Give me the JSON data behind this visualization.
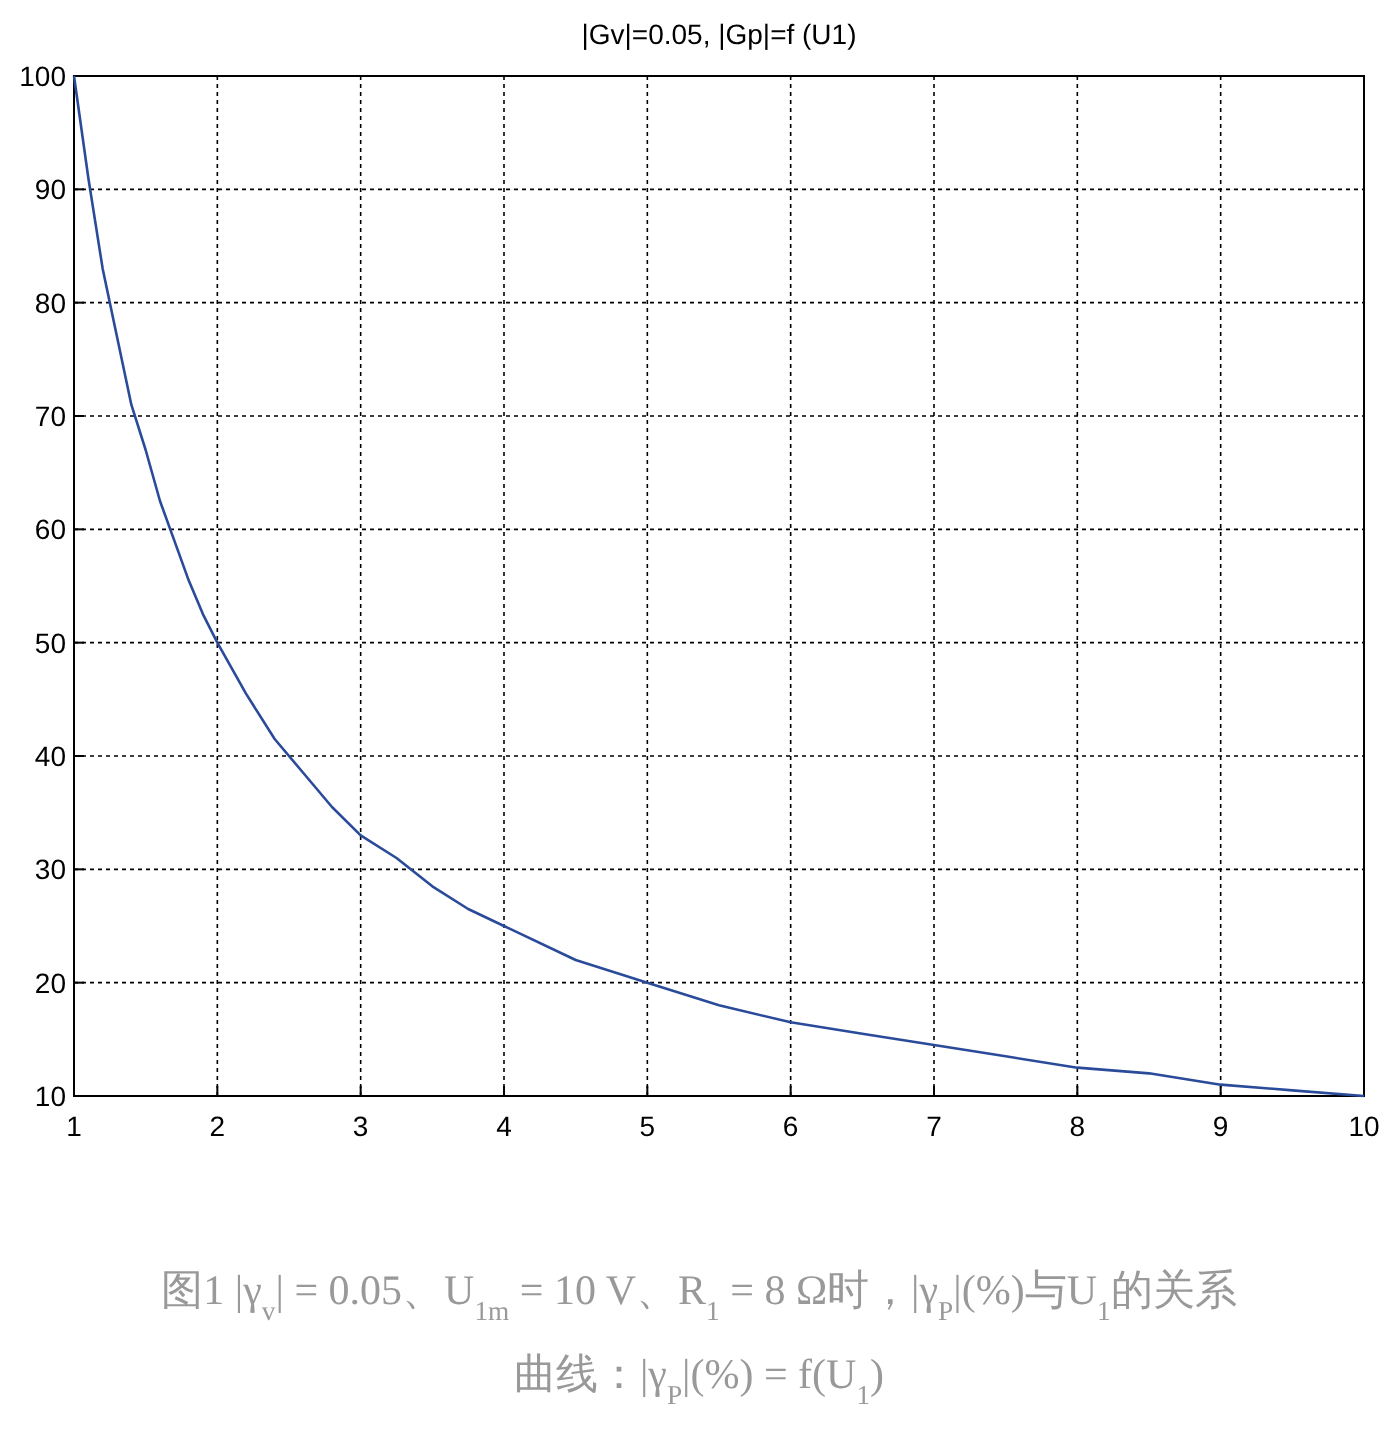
{
  "chart_data": {
    "type": "line",
    "title": "|Gv|=0.05, |Gp|=f (U1)",
    "x": [
      1,
      1.1,
      1.2,
      1.3,
      1.4,
      1.5,
      1.6,
      1.7,
      1.8,
      1.9,
      2,
      2.2,
      2.4,
      2.6,
      2.8,
      3,
      3.25,
      3.5,
      3.75,
      4,
      4.5,
      5,
      5.5,
      6,
      6.5,
      7,
      7.5,
      8,
      8.5,
      9,
      9.5,
      10
    ],
    "series": [
      {
        "color": "#2a4a9a",
        "values": [
          100,
          91,
          83,
          77,
          71,
          67,
          62.5,
          59,
          55.5,
          52.5,
          50,
          45.5,
          41.5,
          38.5,
          35.5,
          33,
          31,
          28.5,
          26.5,
          25,
          22,
          20,
          18,
          16.5,
          15.5,
          14.5,
          13.5,
          12.5,
          12,
          11,
          10.5,
          10
        ]
      }
    ],
    "xlim": [
      1,
      10
    ],
    "xticks": [
      1,
      2,
      3,
      4,
      5,
      6,
      7,
      8,
      9,
      10
    ],
    "ylim": [
      10,
      100
    ],
    "yticks": [
      10,
      20,
      30,
      40,
      50,
      60,
      70,
      80,
      90,
      100
    ],
    "grid": true,
    "line_style": "solid",
    "marker": "none",
    "annotations": [
      "图1 |γ$_{v}$| = 0.05、U$_{1m}$ = 10 V、R$_{1}$ = 8 Ω时，|γ$_{P}$|(%)与U$_{1}$的关系",
      "曲线：|γ$_{P}$|(%) = f(U$_{1}$)"
    ]
  }
}
